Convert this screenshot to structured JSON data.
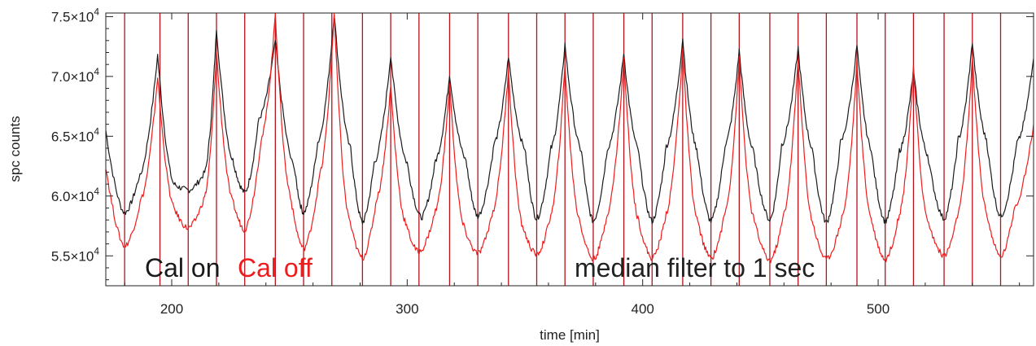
{
  "chart_data": {
    "type": "line",
    "title": "",
    "xlabel": "time [min]",
    "ylabel": "spc counts",
    "xlim": [
      172,
      566
    ],
    "ylim": [
      52500,
      75300
    ],
    "x_ticks": [
      200,
      300,
      400,
      500
    ],
    "x_tick_labels": [
      "200",
      "300",
      "400",
      "500"
    ],
    "y_ticks": [
      55000,
      60000,
      65000,
      70000,
      75000
    ],
    "y_tick_labels": [
      {
        "mantissa": "5.5",
        "base": "×10",
        "exp": "4"
      },
      {
        "mantissa": "6.0",
        "base": "×10",
        "exp": "4"
      },
      {
        "mantissa": "6.5",
        "base": "×10",
        "exp": "4"
      },
      {
        "mantissa": "7.0",
        "base": "×10",
        "exp": "4"
      },
      {
        "mantissa": "7.5",
        "base": "×10",
        "exp": "4"
      }
    ],
    "legend": [
      {
        "label": "Cal on",
        "color": "#1a1a1a"
      },
      {
        "label": "Cal off",
        "color": "#ee1c1c"
      }
    ],
    "annotation": "median filter to 1 sec",
    "series": [
      {
        "name": "Cal on",
        "color": "#1a1a1a",
        "x": [
          172,
          180,
          186,
          194,
          201,
          207,
          214,
          219,
          226,
          231,
          237,
          244,
          252,
          256,
          262,
          269,
          276,
          281,
          286,
          293,
          300,
          306,
          312,
          318,
          325,
          330,
          337,
          343,
          350,
          355,
          361,
          367,
          374,
          379,
          385,
          392,
          398,
          404,
          410,
          417,
          423,
          429,
          435,
          441,
          447,
          454,
          459,
          466,
          472,
          478,
          484,
          491,
          497,
          503,
          509,
          515,
          521,
          528,
          534,
          540,
          546,
          552,
          559,
          566
        ],
        "y": [
          65500,
          58600,
          61500,
          71800,
          61000,
          60500,
          62000,
          74000,
          63000,
          60300,
          66500,
          73000,
          62500,
          58600,
          64500,
          75300,
          64000,
          57800,
          62800,
          71800,
          62800,
          58200,
          63000,
          70200,
          63000,
          58300,
          64500,
          71700,
          64000,
          58100,
          64000,
          72700,
          63800,
          57900,
          64000,
          72000,
          64000,
          57900,
          64200,
          73200,
          64000,
          57900,
          64300,
          72200,
          63800,
          58000,
          64300,
          72400,
          64000,
          57800,
          64500,
          72600,
          64000,
          57900,
          63800,
          70500,
          63500,
          58100,
          64800,
          72900,
          64800,
          58300,
          64500,
          71500
        ]
      },
      {
        "name": "Cal off",
        "color": "#ee1c1c",
        "x": [
          172,
          180,
          187,
          194,
          201,
          207,
          214,
          219,
          226,
          231,
          238,
          244,
          250,
          256,
          263,
          269,
          275,
          281,
          287,
          293,
          299,
          305,
          312,
          318,
          324,
          330,
          336,
          343,
          349,
          355,
          361,
          367,
          373,
          379,
          385,
          392,
          398,
          404,
          410,
          417,
          423,
          429,
          435,
          441,
          447,
          454,
          460,
          466,
          472,
          478,
          485,
          491,
          497,
          503,
          509,
          515,
          521,
          528,
          534,
          540,
          546,
          552,
          558,
          566
        ],
        "y": [
          62500,
          55800,
          59800,
          70000,
          59000,
          57300,
          60000,
          72000,
          59500,
          57200,
          64800,
          75300,
          60500,
          55600,
          62000,
          75300,
          58500,
          54800,
          59800,
          69200,
          58000,
          55300,
          58800,
          69500,
          57500,
          55200,
          58500,
          70600,
          57500,
          55100,
          58500,
          71000,
          58200,
          54700,
          58600,
          71500,
          58200,
          54800,
          58600,
          72300,
          58200,
          54800,
          58700,
          71500,
          58300,
          54600,
          58600,
          71600,
          58000,
          54700,
          58600,
          71200,
          58200,
          54700,
          58600,
          70800,
          58000,
          55000,
          58700,
          71600,
          58700,
          54900,
          59200,
          66000
        ]
      }
    ],
    "vertical_markers": {
      "color": "#b5121b",
      "x": [
        180,
        195,
        207,
        219,
        231,
        244,
        256,
        268,
        281,
        293,
        305,
        318,
        330,
        343,
        355,
        367,
        379,
        392,
        404,
        417,
        429,
        441,
        454,
        466,
        478,
        491,
        503,
        515,
        528,
        540,
        552
      ]
    }
  }
}
